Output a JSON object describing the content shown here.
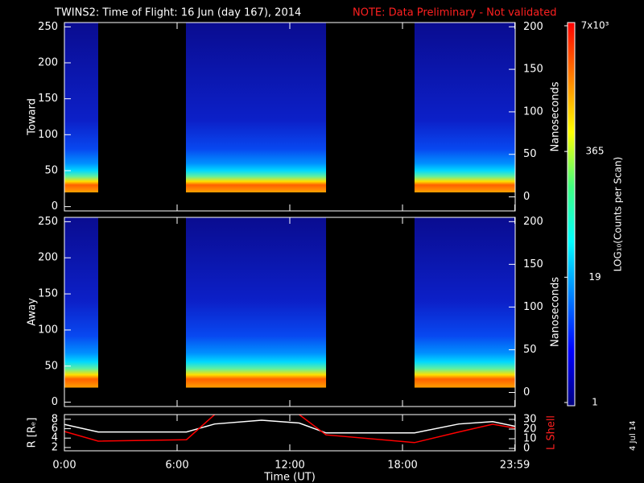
{
  "chart_data": [
    {
      "type": "spectrogram",
      "title": "TWINS2: Time of Flight: 16 Jun (day 167), 2014",
      "note": "NOTE: Data Preliminary - Not validated",
      "ylabel": "Toward",
      "y2label": "Nanoseconds",
      "xlim": [
        0,
        24
      ],
      "ylim": [
        -6,
        256
      ],
      "yticks": [
        0,
        50,
        100,
        150,
        200,
        250
      ],
      "y2lim": [
        -16.5,
        205
      ],
      "y2ticks": [
        0,
        50,
        100,
        150,
        200
      ],
      "segments": [
        [
          0,
          1.8
        ],
        [
          6.47,
          13.93
        ],
        [
          18.64,
          24
        ]
      ],
      "floor": 20,
      "peak": 30
    },
    {
      "type": "spectrogram",
      "ylabel": "Away",
      "y2label": "Nanoseconds",
      "xlim": [
        0,
        24
      ],
      "ylim": [
        -6,
        256
      ],
      "yticks": [
        0,
        50,
        100,
        150,
        200,
        250
      ],
      "y2lim": [
        -16.5,
        205
      ],
      "y2ticks": [
        0,
        50,
        100,
        150,
        200
      ],
      "segments": [
        [
          0,
          1.8
        ],
        [
          6.47,
          13.93
        ],
        [
          18.64,
          24
        ]
      ],
      "floor": 20,
      "peak": 32
    },
    {
      "type": "line",
      "ylabel": "R [Rₑ]",
      "y2label": "L Shell",
      "xlabel": "Time (UT)",
      "xlim": [
        0,
        24
      ],
      "xticks": [
        {
          "value": 0,
          "label": "0:00"
        },
        {
          "value": 6,
          "label": "6:00"
        },
        {
          "value": 12,
          "label": "12:00"
        },
        {
          "value": 18,
          "label": "18:00"
        },
        {
          "value": 23.98,
          "label": "23:59"
        }
      ],
      "ylim": [
        1.3,
        9
      ],
      "yticks": [
        2,
        4,
        6,
        8
      ],
      "y2lim": [
        -2.5,
        35
      ],
      "y2ticks": [
        0,
        10,
        20,
        30
      ],
      "x": [
        0,
        1.8,
        6.5,
        8,
        10.5,
        12.5,
        13.93,
        18.64,
        21,
        22.8,
        24
      ],
      "series": [
        {
          "color": "#ffffff",
          "values": [
            6.9,
            5.3,
            5.3,
            7.0,
            7.8,
            7.2,
            5.1,
            5.1,
            7.0,
            7.5,
            6.5
          ]
        },
        {
          "color": "#ff0000",
          "axis": "y2",
          "values": [
            17.5,
            7.5,
            9,
            35,
            null,
            35,
            14,
            6,
            17,
            25,
            21
          ]
        }
      ]
    },
    {
      "type": "colorbar",
      "label": "LOG₁₀(Counts per Scan)",
      "clim": [
        1,
        7000
      ],
      "log": true,
      "ticks": [
        1,
        19,
        365,
        {
          "value": 7000,
          "label": "7x10³"
        }
      ]
    }
  ],
  "date_stamp": "4 Jul 14"
}
